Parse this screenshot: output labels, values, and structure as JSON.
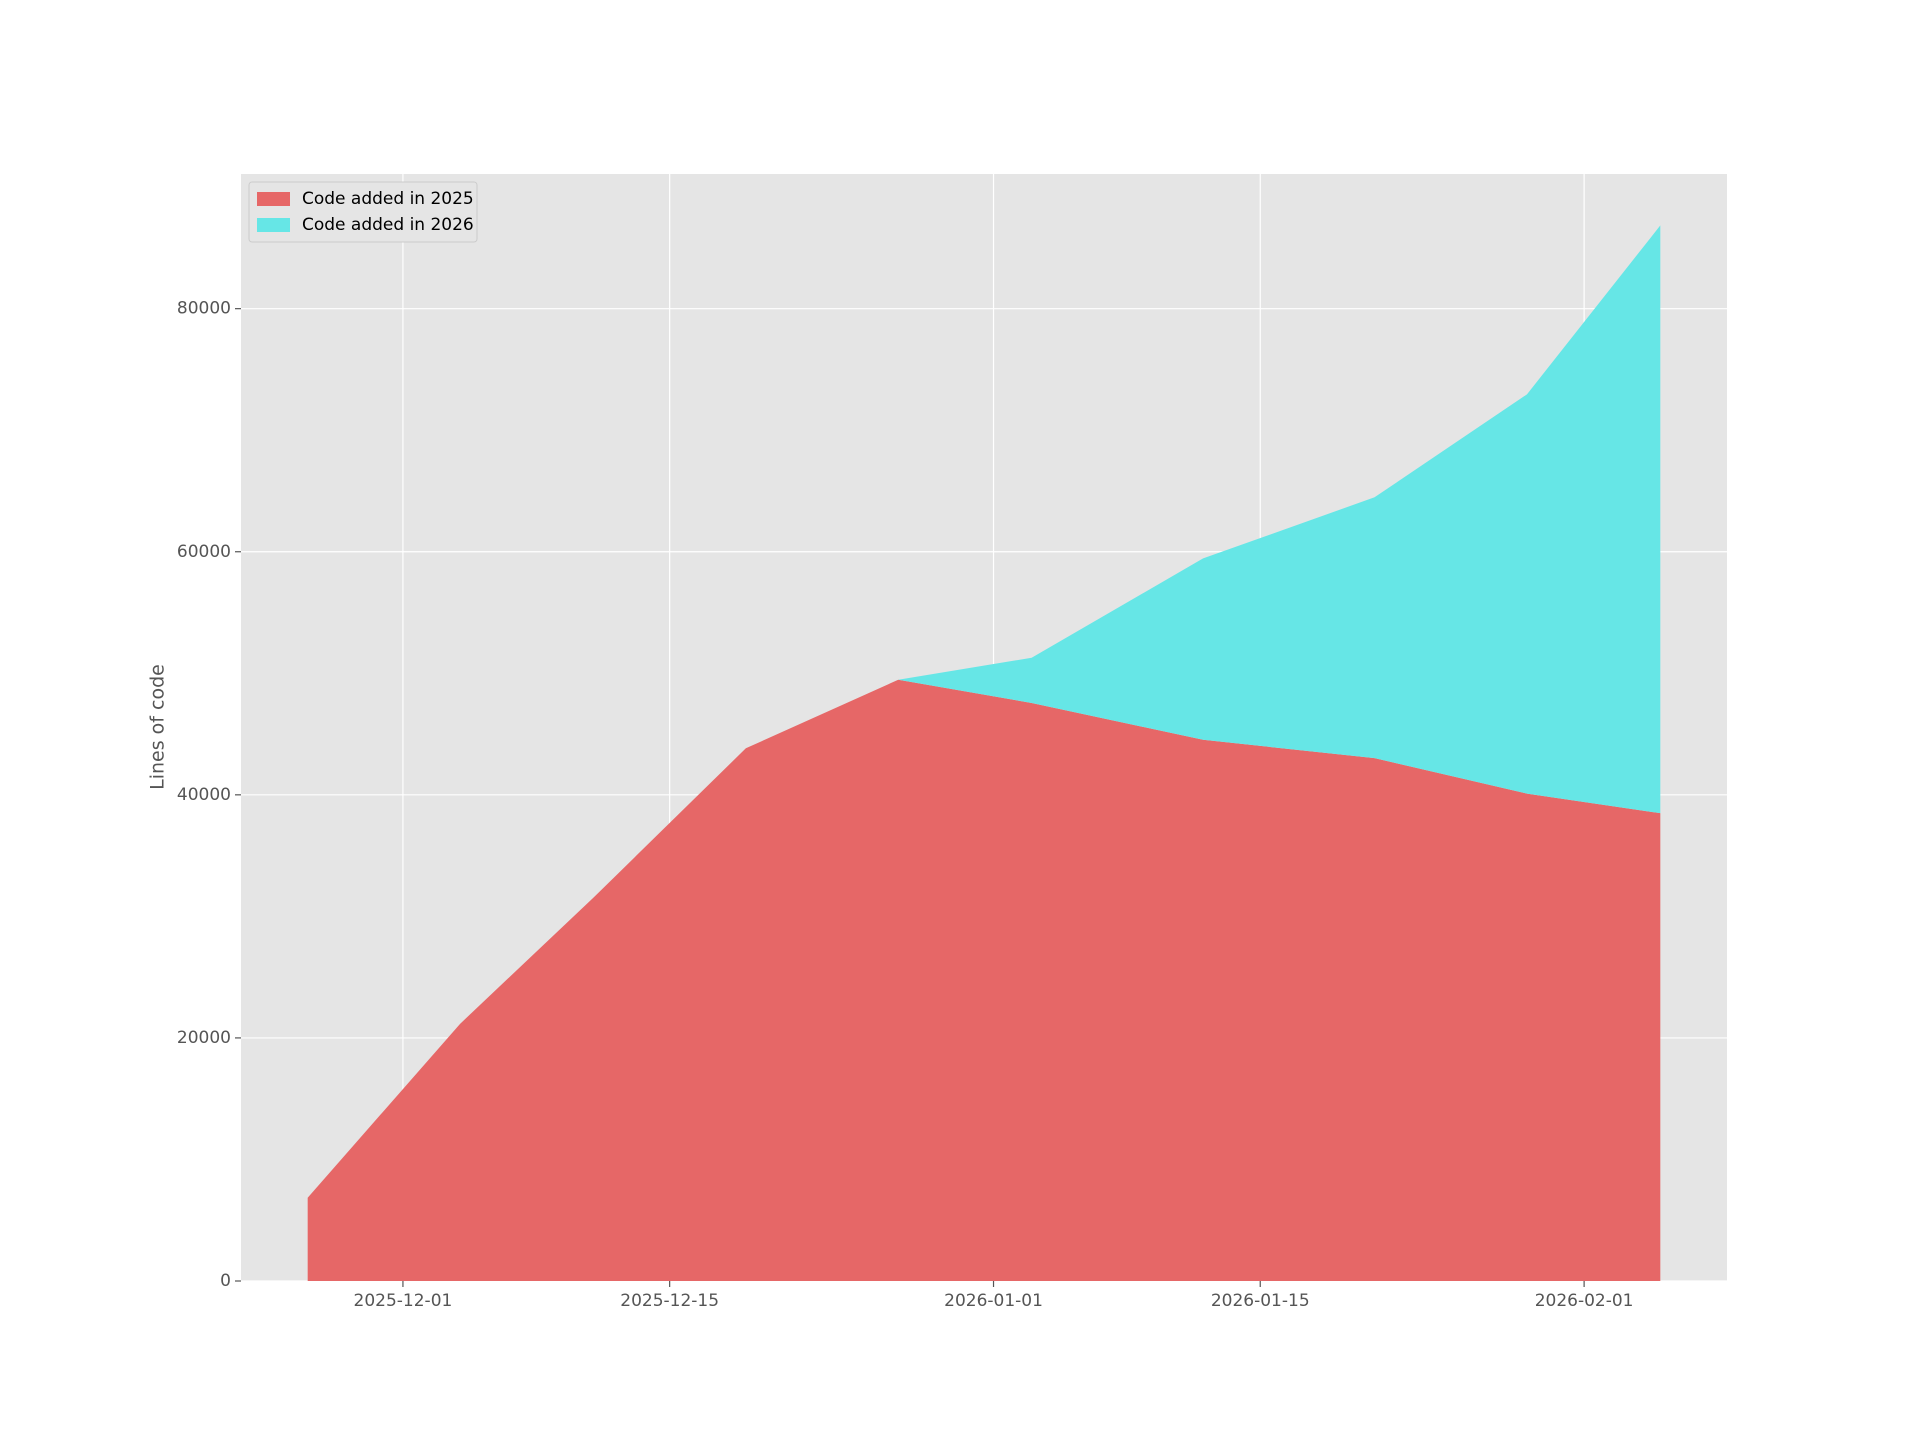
{
  "chart_data": {
    "type": "stacked-area",
    "y_label": "Lines of code",
    "x": [
      "2025-11-26",
      "2025-12-04",
      "2025-12-11",
      "2025-12-19",
      "2025-12-27",
      "2026-01-03",
      "2026-01-12",
      "2026-01-21",
      "2026-01-29",
      "2026-02-05"
    ],
    "series": [
      {
        "name": "Code added in 2025",
        "color": "#e66767",
        "values": [
          6850,
          21160,
          31540,
          43830,
          49470,
          47560,
          44530,
          43020,
          40100,
          38490
        ]
      },
      {
        "name": "Code added in 2026",
        "color": "#66e6e6",
        "values": [
          0,
          0,
          0,
          0,
          0,
          3720,
          14920,
          21460,
          32850,
          48360
        ]
      }
    ],
    "xlim": [
      "2025-11-22T12:00",
      "2026-02-08T12:00"
    ],
    "xticks": [
      "2025-12-01",
      "2025-12-15",
      "2026-01-01",
      "2026-01-15",
      "2026-02-01"
    ],
    "ylim": [
      0,
      91080
    ],
    "yticks": [
      0,
      20000,
      40000,
      60000,
      80000
    ],
    "grid": true,
    "legend": "upper-left"
  }
}
